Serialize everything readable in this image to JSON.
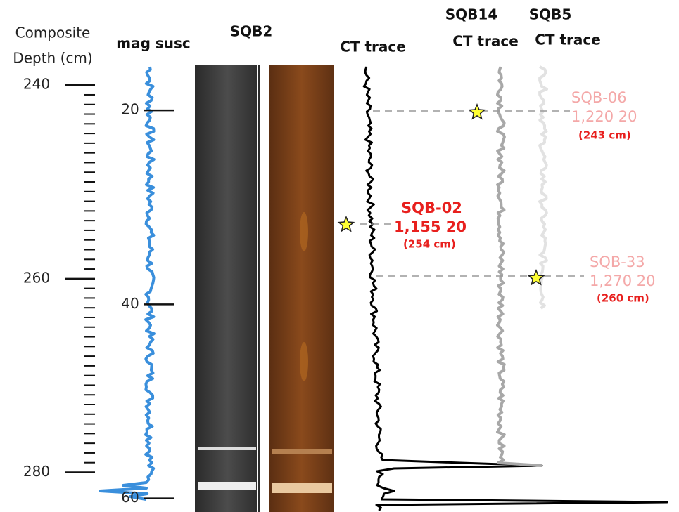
{
  "headers": {
    "composite": [
      "Composite",
      "Depth (cm)"
    ],
    "mag_susc": "mag susc",
    "core": "SQB2",
    "ct_trace": "CT trace",
    "sqb14": [
      "SQB14",
      "CT trace"
    ],
    "sqb5": [
      "SQB5",
      "CT trace"
    ]
  },
  "composite_axis": {
    "ylim": [
      238.1,
      284.1
    ],
    "ticks": [
      240,
      260,
      280
    ],
    "minor_ticks": [
      241,
      242,
      243,
      244,
      245,
      246,
      247,
      248,
      249,
      250,
      251,
      252,
      253,
      254,
      255,
      256,
      257,
      258,
      259,
      261,
      262,
      263,
      264,
      265,
      266,
      267,
      268,
      269,
      270,
      271,
      272,
      273,
      274,
      275,
      276,
      277,
      278,
      279
    ]
  },
  "core_axis": {
    "ylim": [
      15.5,
      61.4
    ],
    "ticks": [
      20,
      40,
      60
    ]
  },
  "dates": [
    {
      "sample": "SQB-06",
      "age": "1,220  20",
      "depth": "(243 cm)"
    },
    {
      "sample": "SQB-02",
      "age": "1,155  20",
      "depth": "(254 cm)"
    },
    {
      "sample": "SQB-33",
      "age": "1,270  20",
      "depth": "(260 cm)"
    }
  ]
}
